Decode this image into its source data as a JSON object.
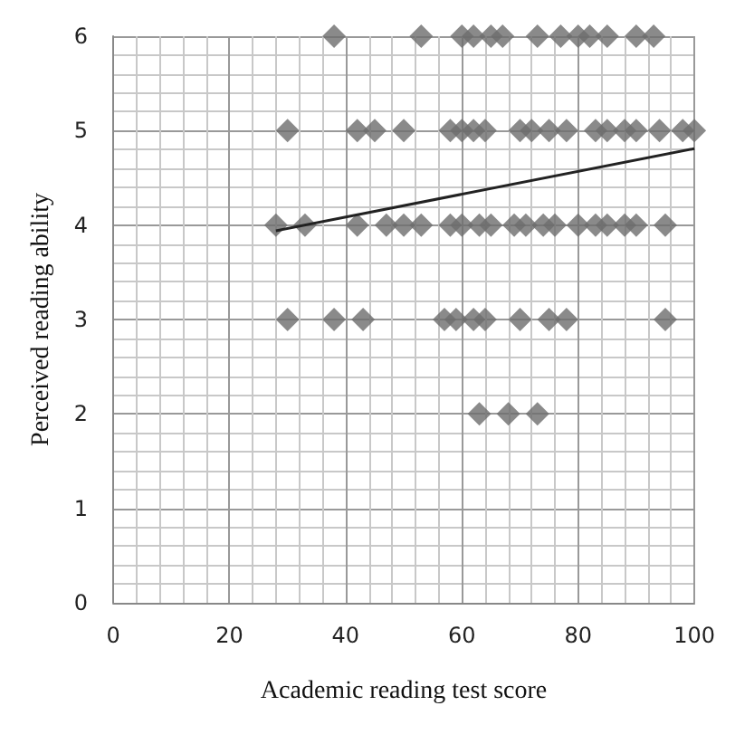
{
  "chart_data": {
    "type": "scatter",
    "xlabel": "Academic reading test score",
    "ylabel": "Perceived reading ability",
    "xlim": [
      0,
      100
    ],
    "xticks": [
      0,
      20,
      40,
      60,
      80,
      100
    ],
    "ylim": [
      0,
      6
    ],
    "yticks": [
      0,
      1,
      2,
      3,
      4,
      5,
      6
    ],
    "grid": true,
    "marker": "diamond",
    "series": [
      {
        "color": "#6d6d6d",
        "x": [
          38,
          53,
          60,
          62,
          65,
          67,
          73,
          77,
          80,
          82,
          85,
          90,
          93,
          30,
          42,
          45,
          50,
          58,
          60,
          62,
          64,
          70,
          72,
          75,
          78,
          83,
          85,
          88,
          90,
          94,
          98,
          100,
          28,
          33,
          42,
          47,
          50,
          53,
          58,
          60,
          63,
          65,
          69,
          71,
          74,
          76,
          80,
          83,
          85,
          88,
          90,
          95,
          30,
          38,
          43,
          57,
          59,
          62,
          64,
          70,
          75,
          78,
          95,
          63,
          68,
          73
        ],
        "values": [
          6,
          6,
          6,
          6,
          6,
          6,
          6,
          6,
          6,
          6,
          6,
          6,
          6,
          5,
          5,
          5,
          5,
          5,
          5,
          5,
          5,
          5,
          5,
          5,
          5,
          5,
          5,
          5,
          5,
          5,
          5,
          5,
          4,
          4,
          4,
          4,
          4,
          4,
          4,
          4,
          4,
          4,
          4,
          4,
          4,
          4,
          4,
          4,
          4,
          4,
          4,
          4,
          3,
          3,
          3,
          3,
          3,
          3,
          3,
          3,
          3,
          3,
          3,
          2,
          2,
          2
        ]
      },
      {
        "type": "line",
        "color": "#222222",
        "x": [
          28,
          100
        ],
        "values": [
          3.94,
          4.81
        ],
        "marker": "none",
        "line_style": "solid"
      }
    ]
  }
}
